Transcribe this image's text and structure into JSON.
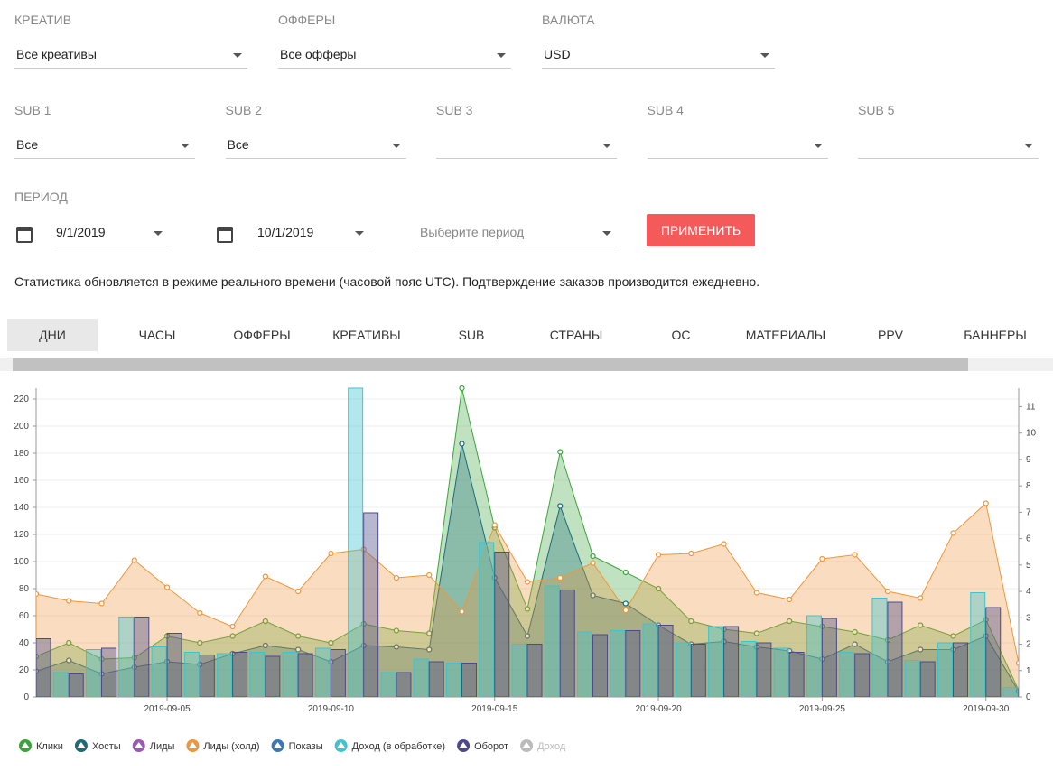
{
  "filters": [
    {
      "label": "КРЕАТИВ",
      "value": "Все креативы"
    },
    {
      "label": "ОФФЕРЫ",
      "value": "Все офферы"
    },
    {
      "label": "ВАЛЮТА",
      "value": "USD"
    }
  ],
  "subs": [
    {
      "label": "SUB 1",
      "value": "Все"
    },
    {
      "label": "SUB 2",
      "value": "Все"
    },
    {
      "label": "SUB 3"
    },
    {
      "label": "SUB 4"
    },
    {
      "label": "SUB 5"
    }
  ],
  "period": {
    "label": "ПЕРИОД",
    "from": "9/1/2019",
    "to": "10/1/2019",
    "placeholder": "Выберите период",
    "apply": "ПРИМЕНИТЬ"
  },
  "notice": "Статистика обновляется в режиме реального времени (часовой пояс UTC). Подтверждение заказов производится ежедневно.",
  "tabs": [
    "ДНИ",
    "ЧАСЫ",
    "ОФФЕРЫ",
    "КРЕАТИВЫ",
    "SUB",
    "СТРАНЫ",
    "ОС",
    "МАТЕРИАЛЫ",
    "PPV",
    "БАННЕРЫ"
  ],
  "active_tab": 0,
  "chart_data": {
    "type": "combo",
    "x": [
      "2019-09-01",
      "2019-09-02",
      "2019-09-03",
      "2019-09-04",
      "2019-09-05",
      "2019-09-06",
      "2019-09-07",
      "2019-09-08",
      "2019-09-09",
      "2019-09-10",
      "2019-09-11",
      "2019-09-12",
      "2019-09-13",
      "2019-09-14",
      "2019-09-15",
      "2019-09-16",
      "2019-09-17",
      "2019-09-18",
      "2019-09-19",
      "2019-09-20",
      "2019-09-21",
      "2019-09-22",
      "2019-09-23",
      "2019-09-24",
      "2019-09-25",
      "2019-09-26",
      "2019-09-27",
      "2019-09-28",
      "2019-09-29",
      "2019-09-30",
      "2019-10-01"
    ],
    "xticks": [
      "2019-09-05",
      "2019-09-10",
      "2019-09-15",
      "2019-09-20",
      "2019-09-25",
      "2019-09-30"
    ],
    "ylim": [
      0,
      228
    ],
    "yticks": [
      0,
      20,
      40,
      60,
      80,
      100,
      120,
      140,
      160,
      180,
      200,
      220
    ],
    "y2lim": [
      0,
      11.7
    ],
    "y2ticks": [
      0,
      1,
      2,
      3,
      4,
      5,
      6,
      7,
      8,
      9,
      10,
      11
    ],
    "series": [
      {
        "name": "Клики",
        "kind": "area",
        "color": "#3aa53a",
        "values": [
          30,
          40,
          28,
          29,
          45,
          40,
          45,
          56,
          45,
          40,
          54,
          49,
          47,
          228,
          125,
          65,
          181,
          104,
          92,
          80,
          56,
          50,
          47,
          56,
          52,
          48,
          42,
          53,
          45,
          57,
          5
        ]
      },
      {
        "name": "Хосты",
        "kind": "area",
        "color": "#1d6b78",
        "values": [
          19,
          27,
          17,
          22,
          26,
          24,
          32,
          38,
          35,
          26,
          38,
          37,
          35,
          187,
          88,
          45,
          141,
          75,
          69,
          53,
          39,
          41,
          37,
          34,
          28,
          39,
          26,
          35,
          35,
          45,
          4
        ]
      },
      {
        "name": "Лиды",
        "color": "#9b59b6"
      },
      {
        "name": "Лиды (холд)",
        "kind": "area",
        "color": "#f0963a",
        "values": [
          76,
          71,
          69,
          101,
          81,
          62,
          52,
          89,
          78,
          106,
          109,
          88,
          90,
          63,
          127,
          85,
          88,
          99,
          64,
          105,
          106,
          113,
          77,
          72,
          102,
          105,
          78,
          73,
          121,
          143,
          25
        ]
      },
      {
        "name": "Показы",
        "color": "#3a78b8"
      },
      {
        "name": "Доход (в обработке)",
        "kind": "bar",
        "color": "#3fc3cf",
        "values": [
          30,
          18,
          35,
          59,
          37,
          33,
          32,
          33,
          33,
          36,
          228,
          18,
          28,
          25,
          114,
          39,
          82,
          48,
          49,
          54,
          40,
          52,
          41,
          36,
          60,
          33,
          73,
          27,
          40,
          77,
          7
        ]
      },
      {
        "name": "Оборот",
        "kind": "bar",
        "color": "#4c4a8a",
        "values": [
          43,
          17,
          36,
          59,
          47,
          31,
          33,
          30,
          32,
          35,
          136,
          18,
          26,
          25,
          107,
          39,
          79,
          46,
          49,
          53,
          39,
          52,
          40,
          33,
          58,
          32,
          70,
          26,
          40,
          66,
          6
        ]
      },
      {
        "name": "Доход",
        "color": "#8fd08f",
        "hidden": true
      }
    ]
  }
}
